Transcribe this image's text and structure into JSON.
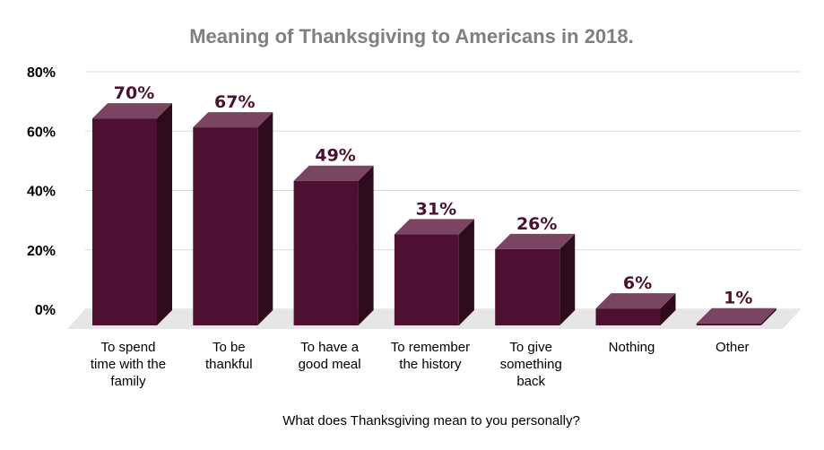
{
  "chart_data": {
    "type": "bar",
    "title": "Meaning of Thanksgiving to Americans in 2018.",
    "xlabel": "What does Thanksgiving mean to you personally?",
    "ylabel": "",
    "categories": [
      "To spend time with the family",
      "To be thankful",
      "To have a good meal",
      "To remember the history",
      "To give something back",
      "Nothing",
      "Other"
    ],
    "category_lines": [
      [
        "To spend",
        "time with the",
        "family"
      ],
      [
        "To be",
        "thankful"
      ],
      [
        "To have a",
        "good meal"
      ],
      [
        "To remember",
        "the history"
      ],
      [
        "To give",
        "something",
        "back"
      ],
      [
        "Nothing"
      ],
      [
        "Other"
      ]
    ],
    "values": [
      70,
      67,
      49,
      31,
      26,
      6,
      1
    ],
    "value_labels": [
      "70%",
      "67%",
      "49%",
      "31%",
      "26%",
      "6%",
      "1%"
    ],
    "ylim": [
      0,
      80
    ],
    "yticks": [
      0,
      20,
      40,
      60,
      80
    ],
    "ytick_labels": [
      "0%",
      "20%",
      "40%",
      "60%",
      "80%"
    ],
    "grid": true,
    "legend": "none",
    "colors": {
      "bar_front": "#4c1130",
      "bar_top": "#7a4560",
      "bar_side": "#2e0a1d",
      "label": "#4c1130",
      "grid": "#d9d9d9",
      "floor": "#e6e6e6",
      "title": "#7f7f7f"
    }
  }
}
